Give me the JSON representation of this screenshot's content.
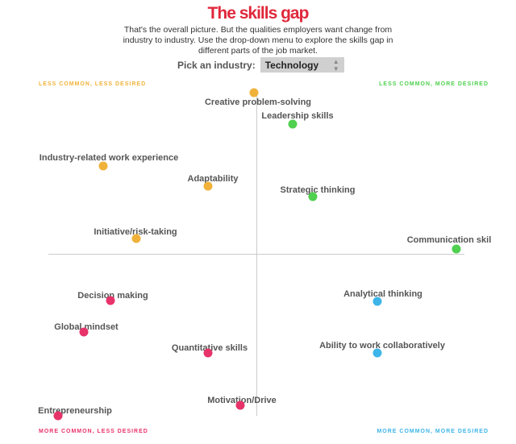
{
  "title": "The skills gap",
  "description": "That's the overall picture. But the qualities employers want change from industry to industry. Use the drop-down menu to explore the skills gap in different parts of the job market.",
  "picker": {
    "label": "Pick an industry:",
    "selected": "Technology"
  },
  "chart_data": {
    "type": "scatter",
    "quadrants": {
      "top_left": {
        "label": "LESS COMMON, LESS DESIRED",
        "color": "#f0b23a"
      },
      "top_right": {
        "label": "LESS COMMON, MORE DESIRED",
        "color": "#4fd04f"
      },
      "bottom_left": {
        "label": "MORE COMMON, LESS DESIRED",
        "color": "#e8336a"
      },
      "bottom_right": {
        "label": "MORE COMMON, MORE DESIRED",
        "color": "#3db5e8"
      }
    },
    "points": [
      {
        "label": "Creative problem-solving",
        "quadrant": "top_left"
      },
      {
        "label": "Leadership skills",
        "quadrant": "top_right"
      },
      {
        "label": "Industry-related work experience",
        "quadrant": "top_left"
      },
      {
        "label": "Adaptability",
        "quadrant": "top_left"
      },
      {
        "label": "Strategic thinking",
        "quadrant": "top_right"
      },
      {
        "label": "Initiative/risk-taking",
        "quadrant": "top_left"
      },
      {
        "label": "Communication skil",
        "quadrant": "top_right"
      },
      {
        "label": "Decision making",
        "quadrant": "bottom_left"
      },
      {
        "label": "Analytical thinking",
        "quadrant": "bottom_right"
      },
      {
        "label": "Global mindset",
        "quadrant": "bottom_left"
      },
      {
        "label": "Quantitative skills",
        "quadrant": "bottom_left"
      },
      {
        "label": "Ability to work collaboratively",
        "quadrant": "bottom_right"
      },
      {
        "label": "Motivation/Drive",
        "quadrant": "bottom_left"
      },
      {
        "label": "Entrepreneurship",
        "quadrant": "bottom_left"
      }
    ]
  }
}
